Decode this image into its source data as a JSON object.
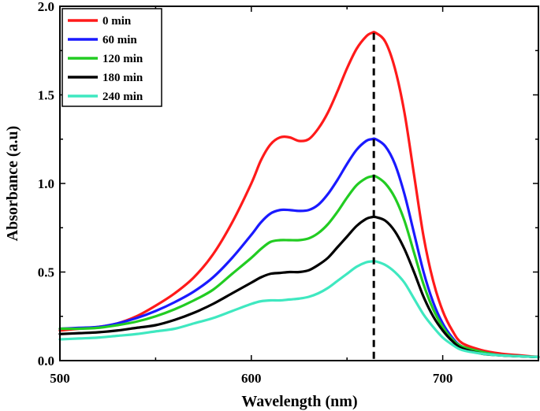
{
  "chart_data": {
    "type": "line",
    "title": "",
    "xlabel": "Wavelength (nm)",
    "ylabel": "Absorbance (a.u)",
    "xlim": [
      500,
      750
    ],
    "ylim": [
      0.0,
      2.0
    ],
    "x_ticks": [
      500,
      600,
      700
    ],
    "x_tick_labels": [
      "500",
      "600",
      "700"
    ],
    "y_ticks": [
      0.0,
      0.5,
      1.0,
      1.5,
      2.0
    ],
    "y_tick_labels": [
      "0.0",
      "0.5",
      "1.0",
      "1.5",
      "2.0"
    ],
    "legend_position": "top-left",
    "reference_line": {
      "x": 664,
      "style": "dashed",
      "color": "#000000"
    },
    "x": [
      500,
      510,
      520,
      530,
      540,
      550,
      560,
      570,
      580,
      590,
      600,
      605,
      610,
      615,
      620,
      625,
      630,
      635,
      640,
      645,
      650,
      655,
      660,
      663,
      665,
      670,
      675,
      680,
      685,
      690,
      695,
      700,
      705,
      710,
      720,
      730,
      740,
      750
    ],
    "series": [
      {
        "name": "0 min",
        "color": "#ff1a1a",
        "values": [
          0.17,
          0.18,
          0.19,
          0.21,
          0.25,
          0.31,
          0.38,
          0.47,
          0.6,
          0.78,
          1.0,
          1.13,
          1.22,
          1.26,
          1.26,
          1.24,
          1.25,
          1.31,
          1.4,
          1.52,
          1.65,
          1.76,
          1.83,
          1.85,
          1.85,
          1.8,
          1.65,
          1.4,
          1.05,
          0.7,
          0.45,
          0.28,
          0.17,
          0.1,
          0.06,
          0.04,
          0.03,
          0.02
        ]
      },
      {
        "name": "60 min",
        "color": "#1a1aff",
        "values": [
          0.18,
          0.185,
          0.19,
          0.21,
          0.24,
          0.28,
          0.33,
          0.39,
          0.47,
          0.58,
          0.71,
          0.78,
          0.83,
          0.85,
          0.85,
          0.845,
          0.85,
          0.88,
          0.94,
          1.02,
          1.11,
          1.19,
          1.24,
          1.25,
          1.25,
          1.21,
          1.11,
          0.94,
          0.72,
          0.5,
          0.33,
          0.21,
          0.13,
          0.08,
          0.05,
          0.03,
          0.025,
          0.02
        ]
      },
      {
        "name": "120 min",
        "color": "#22cc22",
        "values": [
          0.18,
          0.18,
          0.185,
          0.2,
          0.22,
          0.25,
          0.29,
          0.34,
          0.4,
          0.49,
          0.58,
          0.63,
          0.67,
          0.68,
          0.68,
          0.68,
          0.69,
          0.72,
          0.77,
          0.84,
          0.92,
          0.99,
          1.03,
          1.04,
          1.04,
          1.0,
          0.92,
          0.79,
          0.61,
          0.43,
          0.29,
          0.19,
          0.12,
          0.08,
          0.05,
          0.03,
          0.025,
          0.02
        ]
      },
      {
        "name": "180 min",
        "color": "#000000",
        "values": [
          0.15,
          0.155,
          0.16,
          0.17,
          0.185,
          0.2,
          0.23,
          0.27,
          0.32,
          0.38,
          0.44,
          0.47,
          0.49,
          0.495,
          0.5,
          0.5,
          0.51,
          0.54,
          0.58,
          0.64,
          0.7,
          0.76,
          0.8,
          0.81,
          0.81,
          0.79,
          0.73,
          0.63,
          0.5,
          0.36,
          0.25,
          0.17,
          0.11,
          0.07,
          0.04,
          0.03,
          0.025,
          0.02
        ]
      },
      {
        "name": "240 min",
        "color": "#3fe8c0",
        "values": [
          0.12,
          0.125,
          0.13,
          0.14,
          0.15,
          0.165,
          0.18,
          0.21,
          0.24,
          0.28,
          0.32,
          0.335,
          0.34,
          0.34,
          0.345,
          0.35,
          0.36,
          0.38,
          0.41,
          0.45,
          0.49,
          0.53,
          0.555,
          0.56,
          0.56,
          0.54,
          0.5,
          0.44,
          0.35,
          0.26,
          0.19,
          0.13,
          0.09,
          0.06,
          0.04,
          0.03,
          0.025,
          0.02
        ]
      }
    ]
  }
}
